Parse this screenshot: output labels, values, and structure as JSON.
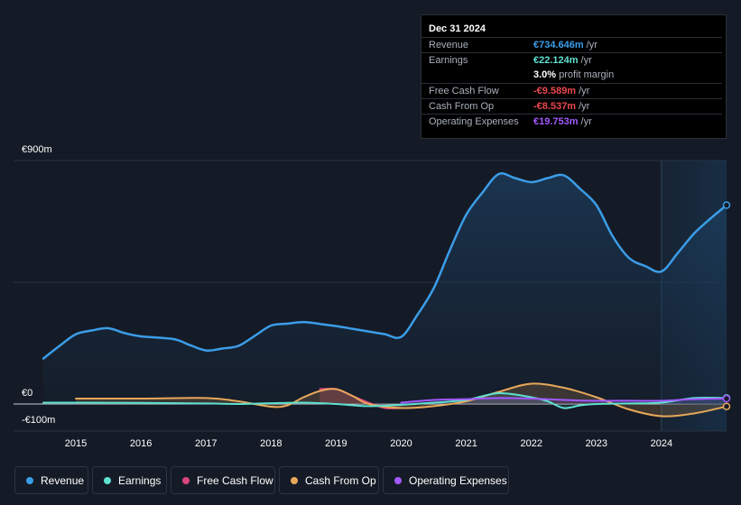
{
  "tooltip": {
    "date": "Dec 31 2024",
    "rows": [
      {
        "label": "Revenue",
        "value": "€734.646m",
        "unit": "/yr",
        "color": "#3b9de8"
      },
      {
        "label": "Earnings",
        "value": "€22.124m",
        "unit": "/yr",
        "color": "#5ee0cf"
      },
      {
        "label": "",
        "value": "3.0%",
        "unit": "profit margin",
        "color": "#ffffff"
      },
      {
        "label": "Free Cash Flow",
        "value": "-€9.589m",
        "unit": "/yr",
        "color": "#e8474f"
      },
      {
        "label": "Cash From Op",
        "value": "-€8.537m",
        "unit": "/yr",
        "color": "#e8474f"
      },
      {
        "label": "Operating Expenses",
        "value": "€19.753m",
        "unit": "/yr",
        "color": "#a259ff"
      }
    ]
  },
  "legend": [
    {
      "label": "Revenue",
      "color": "#3b9de8"
    },
    {
      "label": "Earnings",
      "color": "#5ee0cf"
    },
    {
      "label": "Free Cash Flow",
      "color": "#d9467c"
    },
    {
      "label": "Cash From Op",
      "color": "#e8a85a"
    },
    {
      "label": "Operating Expenses",
      "color": "#a259ff"
    }
  ],
  "chart_data": {
    "type": "line",
    "y_tick_labels": [
      "€900m",
      "€0",
      "-€100m"
    ],
    "ylim": [
      -100,
      900
    ],
    "x_tick_labels": [
      "2015",
      "2016",
      "2017",
      "2018",
      "2019",
      "2020",
      "2021",
      "2022",
      "2023",
      "2024"
    ],
    "xlim": [
      2014.5,
      2025.0
    ],
    "forecast_shade_from": 2024.0,
    "grid": true,
    "series": [
      {
        "name": "Revenue",
        "color": "#3b9de8",
        "x": [
          2014.5,
          2014.75,
          2015.0,
          2015.25,
          2015.5,
          2015.75,
          2016.0,
          2016.5,
          2016.75,
          2017.0,
          2017.25,
          2017.5,
          2017.75,
          2018.0,
          2018.25,
          2018.5,
          2018.75,
          2019.0,
          2019.25,
          2019.5,
          2019.75,
          2020.0,
          2020.25,
          2020.5,
          2020.75,
          2021.0,
          2021.25,
          2021.5,
          2021.75,
          2022.0,
          2022.25,
          2022.5,
          2022.75,
          2023.0,
          2023.25,
          2023.5,
          2023.75,
          2024.0,
          2024.25,
          2024.5,
          2024.75,
          2025.0
        ],
        "values": [
          168,
          215,
          258,
          272,
          280,
          262,
          250,
          240,
          218,
          198,
          205,
          215,
          252,
          290,
          297,
          303,
          296,
          288,
          278,
          268,
          258,
          248,
          330,
          428,
          570,
          700,
          782,
          850,
          835,
          820,
          835,
          845,
          795,
          735,
          620,
          540,
          510,
          490,
          558,
          630,
          685,
          735
        ]
      },
      {
        "name": "Earnings",
        "color": "#5ee0cf",
        "x": [
          2014.5,
          2015.0,
          2016.0,
          2017.0,
          2017.5,
          2018.0,
          2018.5,
          2019.0,
          2019.5,
          2020.0,
          2020.5,
          2021.0,
          2021.5,
          2022.0,
          2022.25,
          2022.5,
          2022.75,
          2023.0,
          2023.5,
          2024.0,
          2024.5,
          2025.0
        ],
        "values": [
          5,
          5,
          4,
          2,
          0,
          3,
          5,
          0,
          -8,
          -3,
          5,
          15,
          40,
          25,
          10,
          -15,
          -5,
          0,
          2,
          5,
          22,
          22
        ]
      },
      {
        "name": "Free Cash Flow",
        "color": "#d9467c",
        "x": [
          2018.75,
          2019.0,
          2019.25,
          2019.5,
          2019.75,
          2020.0
        ],
        "values": [
          55,
          55,
          30,
          5,
          -15,
          -15
        ]
      },
      {
        "name": "Cash From Op",
        "color": "#e8a85a",
        "x": [
          2014.5,
          2015.0,
          2016.0,
          2017.0,
          2017.5,
          2018.0,
          2018.25,
          2018.5,
          2018.75,
          2019.0,
          2019.25,
          2019.5,
          2020.0,
          2020.5,
          2021.0,
          2021.5,
          2022.0,
          2022.5,
          2023.0,
          2023.5,
          2024.0,
          2024.5,
          2025.0
        ],
        "values": [
          null,
          20,
          20,
          22,
          10,
          -10,
          -5,
          25,
          48,
          55,
          30,
          0,
          -15,
          -8,
          10,
          45,
          75,
          60,
          25,
          -20,
          -45,
          -35,
          -9
        ]
      },
      {
        "name": "Operating Expenses",
        "color": "#a259ff",
        "x": [
          2020.0,
          2020.5,
          2021.0,
          2021.5,
          2022.0,
          2022.5,
          2023.0,
          2023.5,
          2024.0,
          2024.5,
          2025.0
        ],
        "values": [
          5,
          15,
          18,
          22,
          20,
          15,
          12,
          12,
          12,
          18,
          20
        ]
      }
    ]
  }
}
